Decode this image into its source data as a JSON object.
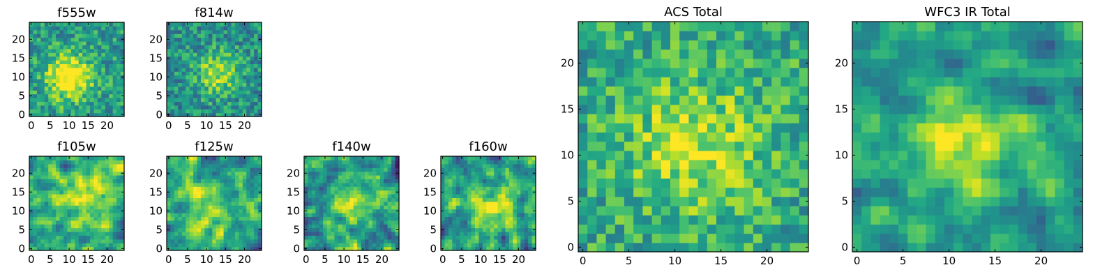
{
  "chart_data": [
    {
      "type": "heatmap",
      "title": "f555w",
      "panel": "small",
      "xlim": [
        -0.5,
        24.5
      ],
      "ylim": [
        -0.5,
        24.5
      ],
      "xticks": [
        0,
        5,
        10,
        15,
        20
      ],
      "yticks": [
        0,
        5,
        10,
        15,
        20
      ],
      "grid": false,
      "colormap": "viridis",
      "value_range": [
        0,
        1
      ],
      "center": [
        10,
        10
      ],
      "peak": 0.62,
      "background": 0.55,
      "noise": 0.42,
      "sigma": 4,
      "smooth": false,
      "seed": 11
    },
    {
      "type": "heatmap",
      "title": "f814w",
      "panel": "small",
      "xlim": [
        -0.5,
        24.5
      ],
      "ylim": [
        -0.5,
        24.5
      ],
      "xticks": [
        0,
        5,
        10,
        15,
        20
      ],
      "yticks": [
        0,
        5,
        10,
        15,
        20
      ],
      "grid": false,
      "colormap": "viridis",
      "value_range": [
        0,
        1
      ],
      "center": [
        13,
        11
      ],
      "peak": 0.38,
      "background": 0.5,
      "noise": 0.42,
      "sigma": 4,
      "smooth": false,
      "seed": 23
    },
    {
      "type": "heatmap",
      "title": "f105w",
      "panel": "small",
      "xlim": [
        -0.5,
        24.5
      ],
      "ylim": [
        -0.5,
        24.5
      ],
      "xticks": [
        0,
        5,
        10,
        15,
        20
      ],
      "yticks": [
        0,
        5,
        10,
        15,
        20
      ],
      "grid": false,
      "colormap": "viridis",
      "value_range": [
        0,
        1
      ],
      "center": [
        14,
        13
      ],
      "peak": 0.25,
      "background": 0.58,
      "noise": 0.55,
      "sigma": 6,
      "smooth": true,
      "seed": 37
    },
    {
      "type": "heatmap",
      "title": "f125w",
      "panel": "small",
      "xlim": [
        -0.5,
        24.5
      ],
      "ylim": [
        -0.5,
        24.5
      ],
      "xticks": [
        0,
        5,
        10,
        15,
        20
      ],
      "yticks": [
        0,
        5,
        10,
        15,
        20
      ],
      "grid": false,
      "colormap": "viridis",
      "value_range": [
        0,
        1
      ],
      "center": [
        11,
        10
      ],
      "peak": 0.28,
      "background": 0.56,
      "noise": 0.55,
      "sigma": 5,
      "smooth": true,
      "seed": 41
    },
    {
      "type": "heatmap",
      "title": "f140w",
      "panel": "small",
      "xlim": [
        -0.5,
        24.5
      ],
      "ylim": [
        -0.5,
        24.5
      ],
      "xticks": [
        0,
        5,
        10,
        15,
        20
      ],
      "yticks": [
        0,
        5,
        10,
        15,
        20
      ],
      "grid": false,
      "colormap": "viridis",
      "value_range": [
        0,
        1
      ],
      "center": [
        13,
        11
      ],
      "peak": 0.3,
      "background": 0.52,
      "noise": 0.6,
      "sigma": 5,
      "smooth": true,
      "seed": 53
    },
    {
      "type": "heatmap",
      "title": "f160w",
      "panel": "small",
      "xlim": [
        -0.5,
        24.5
      ],
      "ylim": [
        -0.5,
        24.5
      ],
      "xticks": [
        0,
        5,
        10,
        15,
        20
      ],
      "yticks": [
        0,
        5,
        10,
        15,
        20
      ],
      "grid": false,
      "colormap": "viridis",
      "value_range": [
        0,
        1
      ],
      "center": [
        14,
        11
      ],
      "peak": 0.3,
      "background": 0.54,
      "noise": 0.6,
      "sigma": 5,
      "smooth": true,
      "seed": 67
    },
    {
      "type": "heatmap",
      "title": "ACS Total",
      "panel": "large",
      "xlim": [
        -0.5,
        24.5
      ],
      "ylim": [
        -0.5,
        24.5
      ],
      "xticks": [
        0,
        5,
        10,
        15,
        20
      ],
      "yticks": [
        0,
        5,
        10,
        15,
        20
      ],
      "grid": false,
      "colormap": "viridis",
      "value_range": [
        0,
        1
      ],
      "center": [
        12,
        11
      ],
      "peak": 0.32,
      "background": 0.6,
      "noise": 0.42,
      "sigma": 5,
      "smooth": false,
      "seed": 79
    },
    {
      "type": "heatmap",
      "title": "WFC3 IR Total",
      "panel": "large",
      "xlim": [
        -0.5,
        24.5
      ],
      "ylim": [
        -0.5,
        24.5
      ],
      "xticks": [
        0,
        5,
        10,
        15,
        20
      ],
      "yticks": [
        0,
        5,
        10,
        15,
        20
      ],
      "grid": false,
      "colormap": "viridis",
      "value_range": [
        0,
        1
      ],
      "center": [
        12,
        12
      ],
      "peak": 0.4,
      "background": 0.52,
      "noise": 0.45,
      "sigma": 4.5,
      "smooth": true,
      "seed": 97
    }
  ]
}
